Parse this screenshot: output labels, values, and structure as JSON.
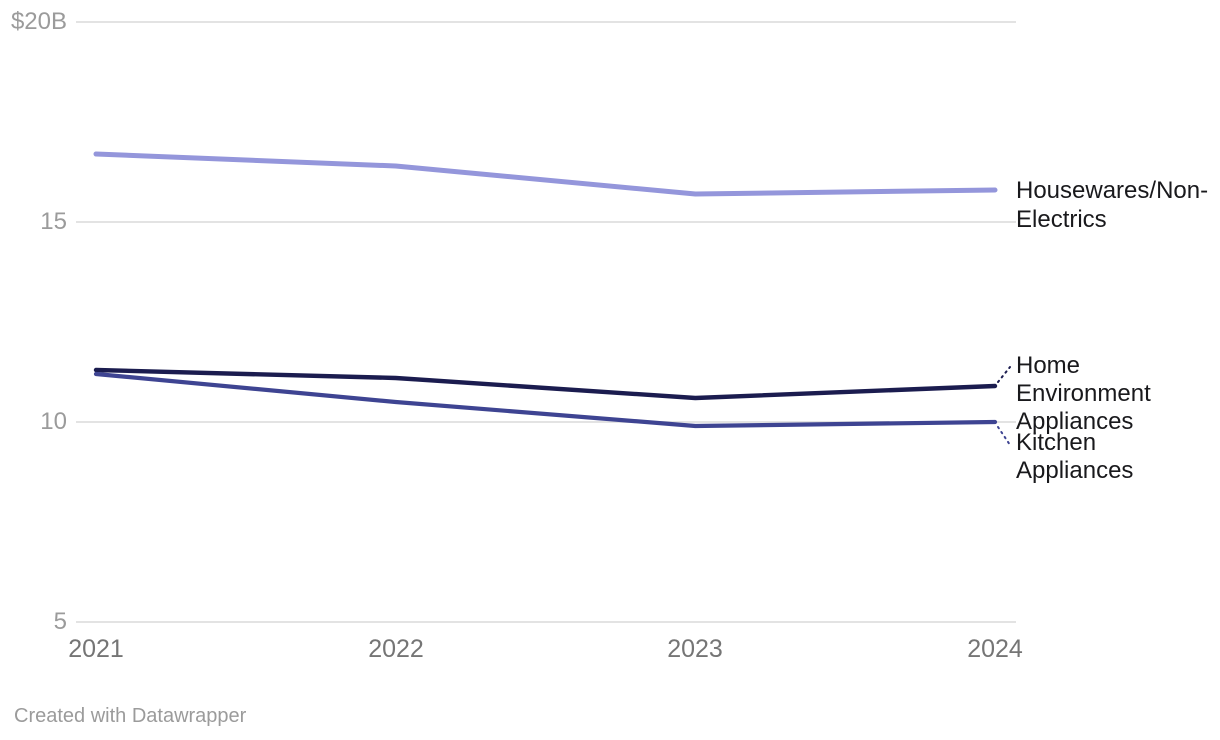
{
  "chart_data": {
    "type": "line",
    "x_labels": [
      "2021",
      "2022",
      "2023",
      "2024"
    ],
    "y_ticks": [
      {
        "value": 20,
        "label": "$20B"
      },
      {
        "value": 15,
        "label": "15"
      },
      {
        "value": 10,
        "label": "10"
      },
      {
        "value": 5,
        "label": "5"
      }
    ],
    "ylim": [
      5,
      20
    ],
    "grid": "horizontal",
    "legend_position": "direct-labels-right",
    "series": [
      {
        "name": "Housewares/Non-Electrics",
        "label_display": "Housewares/Non-\nElectrics",
        "color": "#9496DB",
        "values": [
          16.7,
          16.4,
          15.7,
          15.8
        ]
      },
      {
        "name": "Home Environment Appliances",
        "label_display": "Home\nEnvironment\nAppliances",
        "color": "#1B1C4F",
        "values": [
          11.3,
          11.1,
          10.6,
          10.9
        ]
      },
      {
        "name": "Kitchen Appliances",
        "label_display": "Kitchen\nAppliances",
        "color": "#3E4492",
        "values": [
          11.2,
          10.5,
          9.9,
          10.0
        ]
      }
    ]
  },
  "colors": {
    "gridline": "#e3e3e3",
    "y_tick_text": "#9b9b9b",
    "x_tick_text": "#757575",
    "series_label_text": "#19191c",
    "background": "#ffffff"
  },
  "footer": {
    "credit": "Created with Datawrapper"
  }
}
